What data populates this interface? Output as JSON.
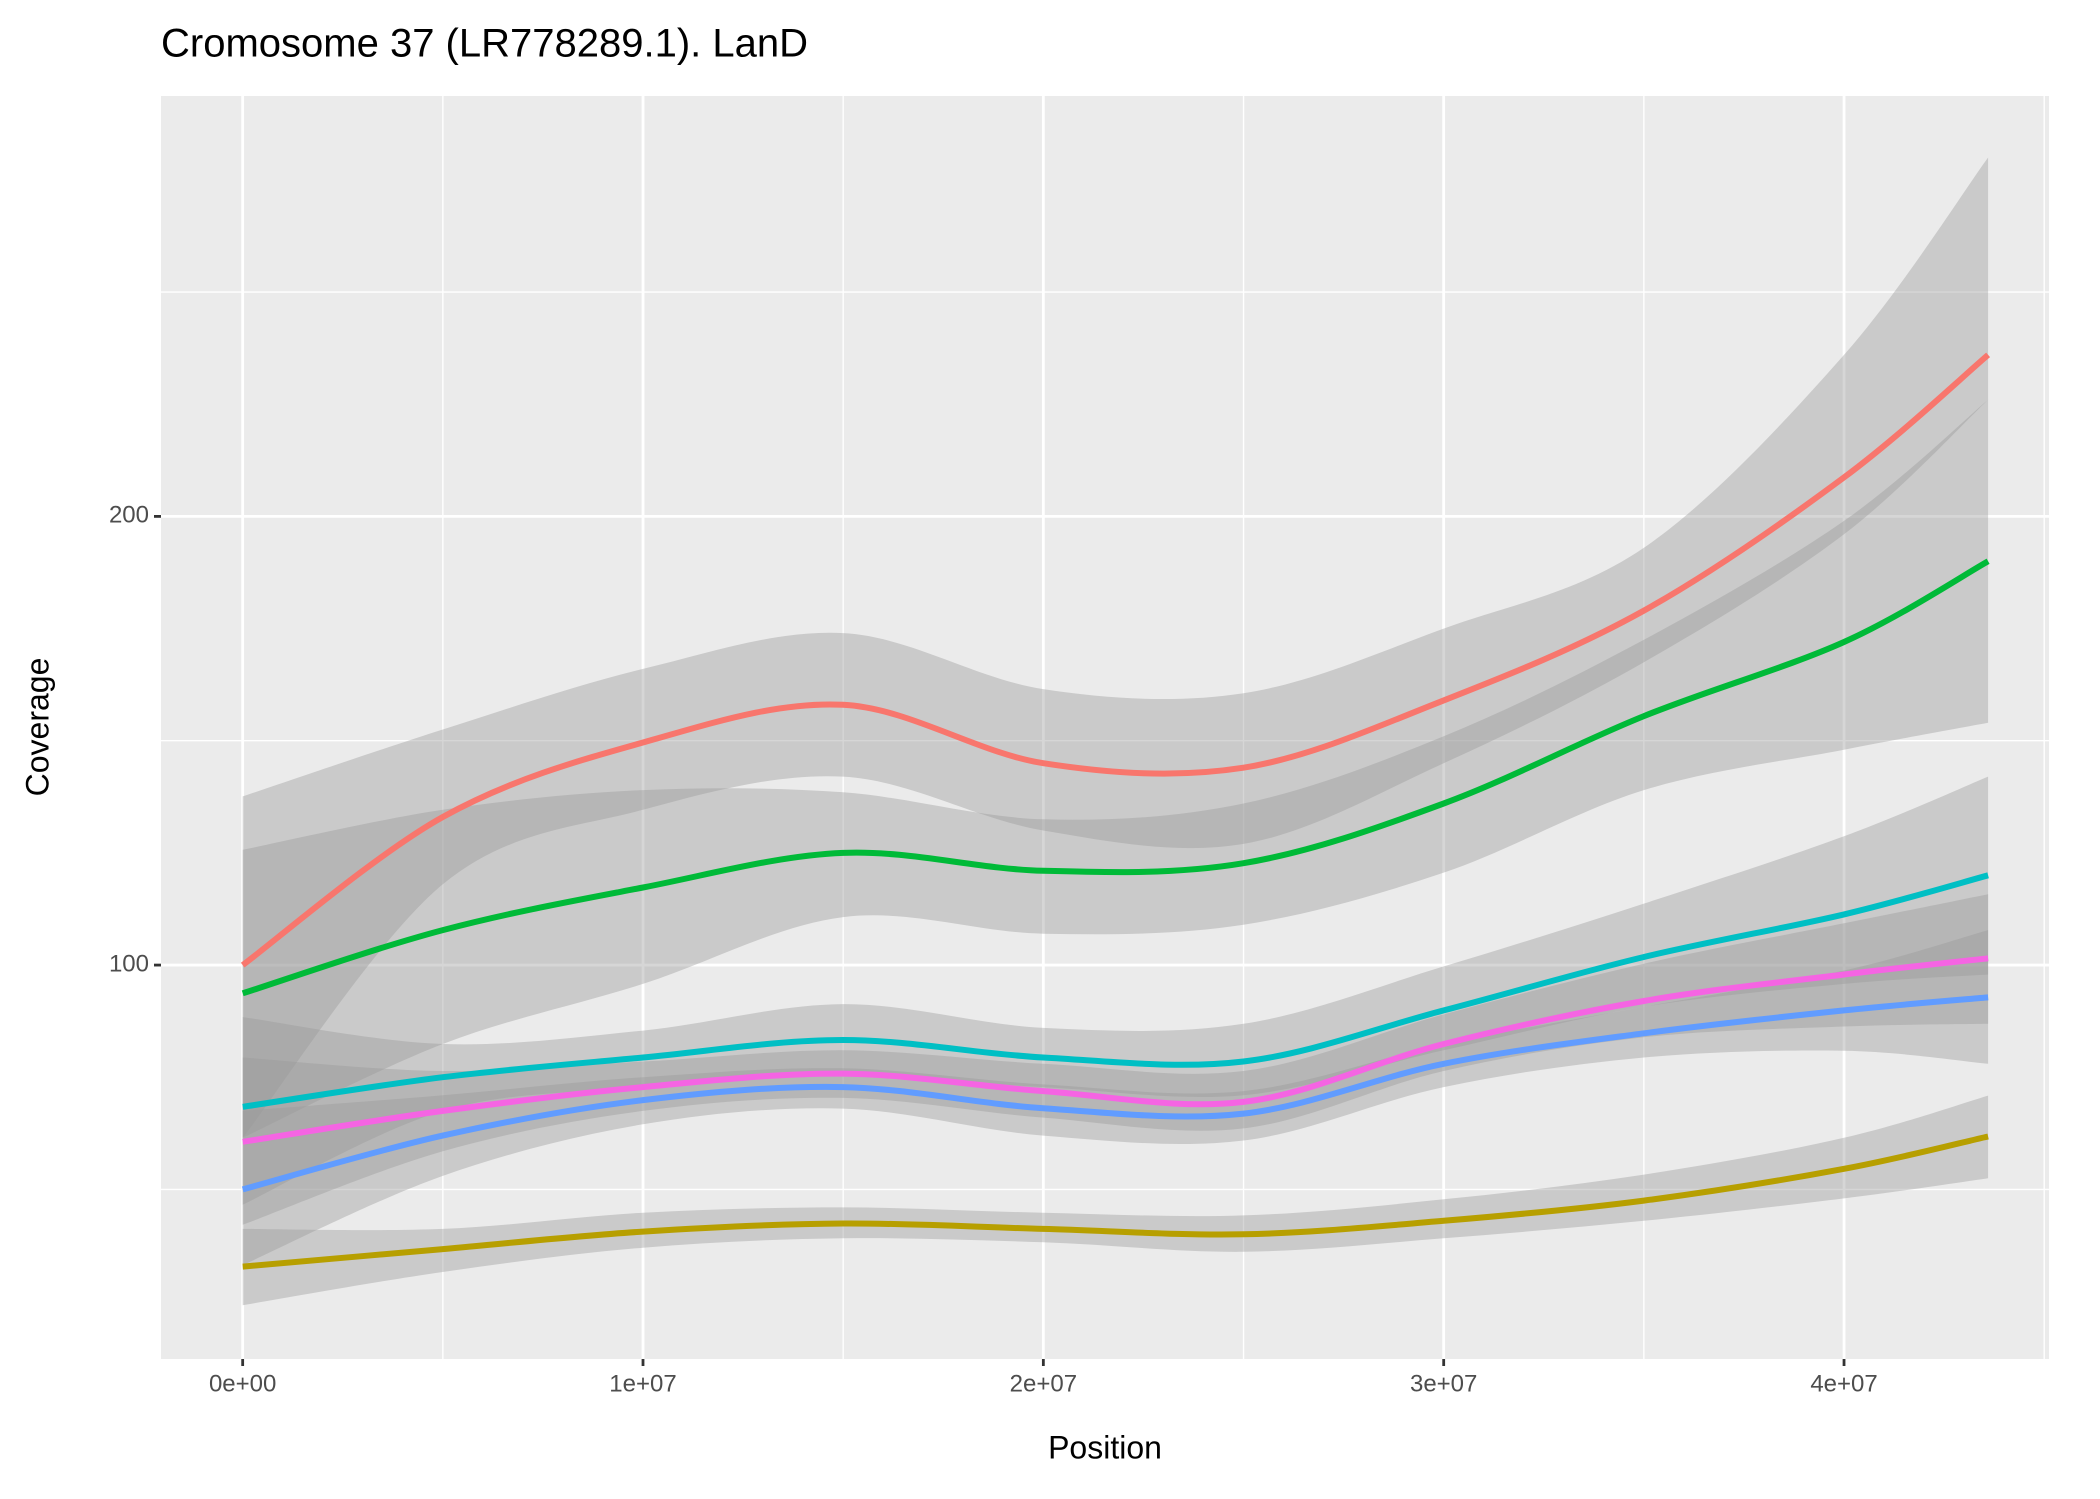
{
  "chart_data": {
    "type": "line",
    "title": "Cromosome 37 (LR778289.1). LanD",
    "x_label": "Position",
    "y_label": "Coverage",
    "x": [
      0,
      5000000,
      10000000,
      15000000,
      20000000,
      25000000,
      30000000,
      35000000,
      40000000,
      43600000
    ],
    "series": [
      {
        "color": "#f8766d",
        "values": [
          100,
          133,
          149.6,
          158,
          145,
          144,
          159,
          179,
          208.7,
          236
        ],
        "upper": [
          137.6,
          152.5,
          166,
          174,
          161.5,
          160.6,
          175,
          193,
          236,
          280
        ],
        "lower": [
          61.5,
          118,
          134.6,
          142,
          130,
          127,
          145,
          167.5,
          196,
          226
        ]
      },
      {
        "color": "#b79f00",
        "values": [
          32.8,
          36.7,
          40.6,
          42.4,
          41.2,
          40,
          43,
          47.5,
          54.6,
          61.8
        ],
        "upper": [
          41.2,
          41.2,
          44.8,
          46,
          44.8,
          44.2,
          47.8,
          53.3,
          61.5,
          70.9
        ],
        "lower": [
          24.2,
          31.6,
          37,
          39.1,
          38.2,
          36.1,
          39.1,
          43,
          48,
          52.5
        ]
      },
      {
        "color": "#00ba38",
        "values": [
          93.7,
          107.8,
          117.3,
          125,
          121,
          122.7,
          136,
          155.5,
          172,
          190
        ],
        "upper": [
          125.7,
          134.6,
          139,
          138.5,
          132.5,
          136,
          151,
          172.5,
          199,
          226
        ],
        "lower": [
          61.5,
          82.4,
          95.8,
          110.7,
          107,
          109,
          120.6,
          139,
          148,
          154
        ]
      },
      {
        "color": "#00bfc4",
        "values": [
          68.4,
          75,
          79.4,
          83.3,
          79.4,
          78.5,
          89.9,
          101.8,
          111.3,
          120
        ],
        "upper": [
          88.4,
          82.4,
          85.4,
          91.3,
          86,
          86.9,
          99.7,
          113.7,
          128.7,
          142
        ],
        "lower": [
          46.6,
          67.5,
          72.8,
          75.5,
          72.8,
          71,
          81,
          90.7,
          95.8,
          97.9
        ]
      },
      {
        "color": "#619cff",
        "values": [
          50,
          62,
          69.9,
          72.8,
          68.1,
          66.9,
          78,
          84.8,
          89.9,
          92.8
        ],
        "upper": [
          67.5,
          71,
          75,
          77,
          73.4,
          71.9,
          82.4,
          90.7,
          98.8,
          107.8
        ],
        "lower": [
          33.1,
          53,
          64.5,
          68,
          62,
          60.9,
          72.8,
          79.4,
          80.9,
          78
        ]
      },
      {
        "color": "#f564e3",
        "values": [
          60.6,
          67.5,
          72.8,
          75.8,
          71.9,
          69.5,
          82.4,
          92,
          97.9,
          101.5
        ],
        "upper": [
          79.4,
          76.4,
          78.5,
          81,
          78,
          76.4,
          89,
          100.3,
          109.3,
          115.8
        ],
        "lower": [
          42.1,
          58.5,
          67.5,
          70.4,
          66,
          63.6,
          76.4,
          83.9,
          86.3,
          86.9
        ]
      }
    ],
    "band_color": "#999999",
    "xlim": [
      -2040000,
      45120000
    ],
    "ylim": [
      12.2,
      293.7
    ],
    "xticks": [
      {
        "value": 0,
        "label": "0e+00"
      },
      {
        "value": 10000000,
        "label": "1e+07"
      },
      {
        "value": 20000000,
        "label": "2e+07"
      },
      {
        "value": 30000000,
        "label": "3e+07"
      },
      {
        "value": 40000000,
        "label": "4e+07"
      }
    ],
    "yticks": [
      100,
      200
    ],
    "minor_xticks": [
      5000000,
      15000000,
      25000000,
      35000000,
      45000000
    ],
    "minor_yticks": [
      50,
      150,
      250
    ],
    "grid": true,
    "panel_color": "#ebebeb"
  }
}
